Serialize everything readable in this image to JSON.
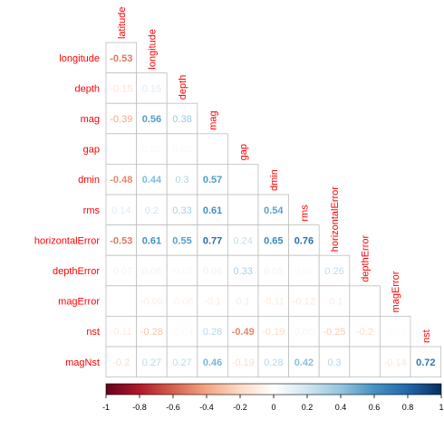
{
  "chart_data": {
    "type": "heatmap",
    "subtype": "correlation-lower-triangle",
    "method": "number",
    "column_labels": [
      "latitude",
      "longitude",
      "depth",
      "mag",
      "gap",
      "dmin",
      "rms",
      "horizontalError",
      "depthError",
      "magError",
      "nst"
    ],
    "row_labels": [
      "longitude",
      "depth",
      "mag",
      "gap",
      "dmin",
      "rms",
      "horizontalError",
      "depthError",
      "magError",
      "nst",
      "magNst"
    ],
    "values": [
      [
        -0.53
      ],
      [
        -0.15,
        0.15
      ],
      [
        -0.39,
        0.56,
        0.38
      ],
      [
        0.01,
        0.05,
        0.05,
        0.02
      ],
      [
        -0.48,
        0.44,
        0.3,
        0.57,
        0.02
      ],
      [
        0.14,
        0.2,
        0.33,
        0.61,
        0.01,
        0.54
      ],
      [
        -0.53,
        0.61,
        0.55,
        0.77,
        0.24,
        0.65,
        0.76
      ],
      [
        -0.07,
        0.08,
        -0.05,
        0.08,
        0.33,
        0.08,
        0.04,
        0.26
      ],
      [
        0.01,
        -0.09,
        -0.06,
        -0.1,
        0.1,
        -0.11,
        -0.12,
        -0.1,
        0.01
      ],
      [
        -0.11,
        -0.28,
        -0.04,
        0.28,
        -0.49,
        -0.19,
        0.06,
        -0.25,
        -0.2,
        -0.03
      ],
      [
        -0.2,
        0.27,
        0.27,
        0.46,
        -0.19,
        0.28,
        0.42,
        0.3,
        0.01,
        -0.14,
        0.72
      ]
    ],
    "labels": [
      [
        "-0.53"
      ],
      [
        "-0.15",
        "0.15"
      ],
      [
        "-0.39",
        "0.56",
        "0.38"
      ],
      [
        "",
        "0.05",
        "0.05",
        ""
      ],
      [
        "-0.48",
        "0.44",
        "0.3",
        "0.57",
        ""
      ],
      [
        "0.14",
        "0.2",
        "0.33",
        "0.61",
        "",
        "0.54"
      ],
      [
        "-0.53",
        "0.61",
        "0.55",
        "0.77",
        "0.24",
        "0.65",
        "0.76"
      ],
      [
        "-0.07",
        "0.08",
        "-0.05",
        "0.08",
        "0.33",
        "0.08",
        "0.04",
        "0.26"
      ],
      [
        "",
        "-0.09",
        "-0.06",
        "-0.1",
        "0.1",
        "-0.11",
        "-0.12",
        "-0.1",
        ""
      ],
      [
        "-0.11",
        "-0.28",
        "-0.04",
        "0.28",
        "-0.49",
        "-0.19",
        "0.06",
        "-0.25",
        "-0.2",
        "-0.03"
      ],
      [
        "-0.2",
        "0.27",
        "0.27",
        "0.46",
        "-0.19",
        "0.28",
        "0.42",
        "0.3",
        "",
        "-0.14",
        "0.72"
      ]
    ],
    "color_scale": {
      "min": -1,
      "max": 1,
      "ticks": [
        "-1",
        "-0.8",
        "-0.6",
        "-0.4",
        "-0.2",
        "0",
        "0.2",
        "0.4",
        "0.6",
        "0.8",
        "1"
      ],
      "colors": [
        "#67001F",
        "#B2182B",
        "#D6604D",
        "#F4A582",
        "#FDDBC7",
        "#FFFFFF",
        "#D1E5F0",
        "#92C5DE",
        "#4393C3",
        "#2166AC",
        "#053061"
      ]
    },
    "label_color": "#FF0000",
    "grid_color": "#BEBEBE",
    "legend_position": "bottom"
  }
}
